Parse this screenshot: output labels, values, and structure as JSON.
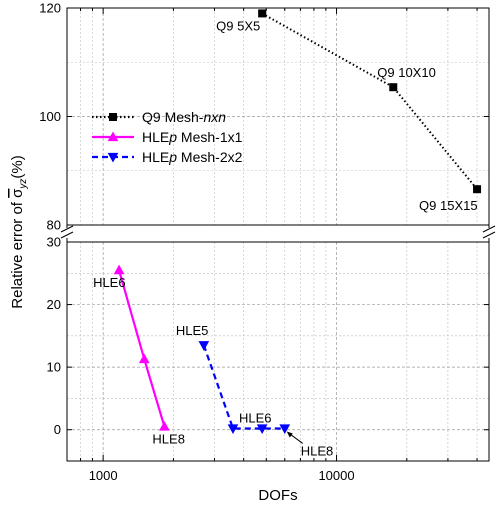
{
  "chart_data": {
    "type": "line",
    "xlabel": "DOFs",
    "ylabel_prefix": "Relative error of ",
    "ylabel_symbol": "σ",
    "ylabel_sub": "yz",
    "ylabel_suffix": "(%)",
    "xscale": "log",
    "xlim": [
      700,
      45000
    ],
    "x_ticks": [
      1000,
      10000
    ],
    "x_tick_labels": [
      "1000",
      "10000"
    ],
    "grid": true,
    "y_axis_break": true,
    "y_segments": [
      {
        "name": "upper",
        "ylim": [
          80,
          120
        ],
        "ticks": [
          80,
          100,
          120
        ],
        "tick_labels": [
          "80",
          "100",
          "120"
        ]
      },
      {
        "name": "lower",
        "ylim": [
          -5,
          30
        ],
        "ticks": [
          0,
          10,
          20,
          30
        ],
        "tick_labels": [
          "0",
          "10",
          "20",
          "30"
        ]
      }
    ],
    "series": [
      {
        "name": "Q9 Mesh-nxn",
        "legend_parts": [
          "Q9 Mesh-",
          "nxn"
        ],
        "color": "#000000",
        "line_style": "dotted",
        "marker": "square",
        "segment": "upper",
        "points": [
          {
            "x": 4800,
            "y": 119.0,
            "label": "Q9 5X5"
          },
          {
            "x": 17500,
            "y": 105.4,
            "label": "Q9 10X10"
          },
          {
            "x": 40000,
            "y": 86.6,
            "label": "Q9 15X15"
          }
        ]
      },
      {
        "name": "HLEp Mesh-1x1",
        "legend_parts": [
          "HLE",
          "p",
          " Mesh-1x1"
        ],
        "color": "#ff00ff",
        "line_style": "solid",
        "marker": "triangle-up",
        "segment": "lower",
        "points": [
          {
            "x": 1170,
            "y": 25.5,
            "label": "HLE6"
          },
          {
            "x": 1500,
            "y": 11.3,
            "label": ""
          },
          {
            "x": 1830,
            "y": 0.5,
            "label": "HLE8"
          }
        ]
      },
      {
        "name": "HLEp Mesh-2x2",
        "legend_parts": [
          "HLE",
          "p",
          " Mesh-2x2"
        ],
        "color": "#0000ff",
        "line_style": "dashed",
        "marker": "triangle-down",
        "segment": "lower",
        "points": [
          {
            "x": 2700,
            "y": 13.5,
            "label": "HLE5"
          },
          {
            "x": 3600,
            "y": 0.2,
            "label": "HLE6"
          },
          {
            "x": 4800,
            "y": 0.2,
            "label": ""
          },
          {
            "x": 6000,
            "y": 0.2,
            "label": "HLE8"
          }
        ]
      }
    ],
    "legend_position": "upper-left"
  }
}
